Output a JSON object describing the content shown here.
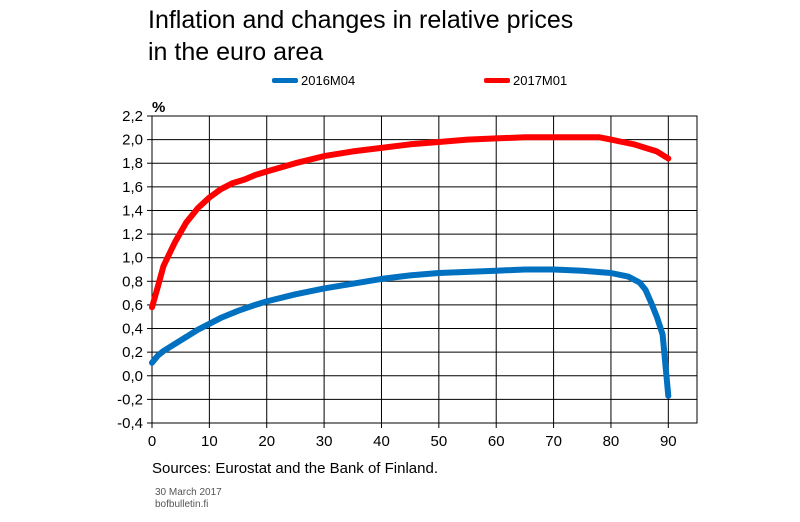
{
  "title_line1": "Inflation and changes in relative prices",
  "title_line2": "in the euro area",
  "unit": "%",
  "source": "Sources: Eurostat and the Bank of Finland.",
  "date": "30 March 2017",
  "site": "bofbulletin.fi",
  "chart_data": {
    "type": "line",
    "title": "Inflation and changes in relative prices in the euro area",
    "xlabel": "",
    "ylabel": "%",
    "xlim": [
      0,
      95
    ],
    "ylim": [
      -0.4,
      2.2
    ],
    "xticks": [
      0,
      10,
      20,
      30,
      40,
      50,
      60,
      70,
      80,
      90
    ],
    "yticks": [
      -0.4,
      -0.2,
      0.0,
      0.2,
      0.4,
      0.6,
      0.8,
      1.0,
      1.2,
      1.4,
      1.6,
      1.8,
      2.0,
      2.2
    ],
    "grid": true,
    "legend": "top",
    "series": [
      {
        "name": "2016M04",
        "color": "#0070C0",
        "x": [
          0,
          1,
          2,
          4,
          6,
          8,
          10,
          12,
          15,
          18,
          20,
          25,
          30,
          35,
          40,
          45,
          50,
          55,
          60,
          65,
          70,
          75,
          80,
          83,
          85,
          86,
          87,
          88,
          89,
          90
        ],
        "y": [
          0.11,
          0.17,
          0.21,
          0.27,
          0.33,
          0.39,
          0.44,
          0.49,
          0.55,
          0.6,
          0.63,
          0.69,
          0.74,
          0.78,
          0.82,
          0.85,
          0.87,
          0.88,
          0.89,
          0.9,
          0.9,
          0.89,
          0.87,
          0.84,
          0.79,
          0.73,
          0.62,
          0.5,
          0.35,
          -0.17
        ]
      },
      {
        "name": "2017M01",
        "color": "#FF0000",
        "x": [
          0,
          1,
          2,
          4,
          6,
          8,
          10,
          12,
          14,
          16,
          18,
          20,
          25,
          30,
          35,
          40,
          45,
          50,
          55,
          60,
          65,
          70,
          75,
          78,
          80,
          82,
          84,
          86,
          88,
          89,
          90
        ],
        "y": [
          0.58,
          0.75,
          0.93,
          1.13,
          1.3,
          1.42,
          1.51,
          1.58,
          1.63,
          1.66,
          1.7,
          1.73,
          1.8,
          1.86,
          1.9,
          1.93,
          1.96,
          1.98,
          2.0,
          2.01,
          2.02,
          2.02,
          2.02,
          2.02,
          2.0,
          1.98,
          1.96,
          1.93,
          1.9,
          1.87,
          1.84
        ]
      }
    ]
  }
}
